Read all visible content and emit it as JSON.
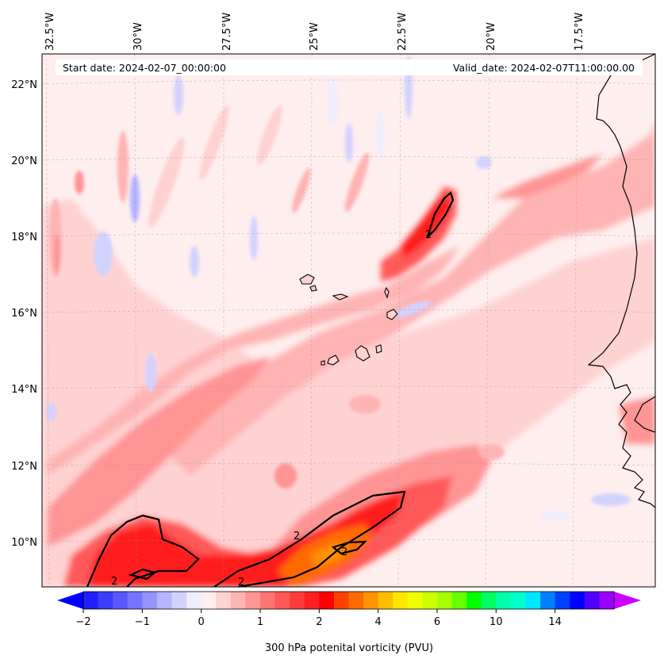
{
  "header": {
    "start_date": "Start date: 2024-02-07_00:00:00",
    "valid_date": "Valid_date: 2024-02-07T11:00:00.00"
  },
  "map": {
    "lon_labels": [
      "32.5°W",
      "30°W",
      "27.5°W",
      "25°W",
      "22.5°W",
      "20°W",
      "17.5°W"
    ],
    "lat_labels": [
      "22°N",
      "20°N",
      "18°N",
      "16°N",
      "14°N",
      "12°N",
      "10°N"
    ],
    "contour_label": "2",
    "field": "300 hPa potenital vorticity",
    "coastline_color": "#000000"
  },
  "colorbar": {
    "title": "300 hPa potenital vorticity (PVU)",
    "ticks": [
      "-2",
      "-1",
      "0",
      "1",
      "2",
      "4",
      "6",
      "10",
      "14"
    ],
    "colors": [
      "#1f1fff",
      "#3c3cff",
      "#5858ff",
      "#7474ff",
      "#9494ff",
      "#b4b4ff",
      "#d2d2ff",
      "#eeeeff",
      "#ffeeee",
      "#ffd2d2",
      "#ffb4b4",
      "#ff9494",
      "#ff7474",
      "#ff5858",
      "#ff3c3c",
      "#ff1f1f",
      "#ff0000",
      "#ff4000",
      "#ff6a00",
      "#ff9300",
      "#ffbd00",
      "#ffe600",
      "#f0ff00",
      "#ccff00",
      "#a6ff00",
      "#66ff00",
      "#00ff00",
      "#00ff66",
      "#00ffaa",
      "#00ffcc",
      "#00e6ff",
      "#0080ff",
      "#0040ff",
      "#0000ff",
      "#5000ff",
      "#9b00ff"
    ],
    "under_color": "#0000ff",
    "over_color": "#cc00ff"
  }
}
